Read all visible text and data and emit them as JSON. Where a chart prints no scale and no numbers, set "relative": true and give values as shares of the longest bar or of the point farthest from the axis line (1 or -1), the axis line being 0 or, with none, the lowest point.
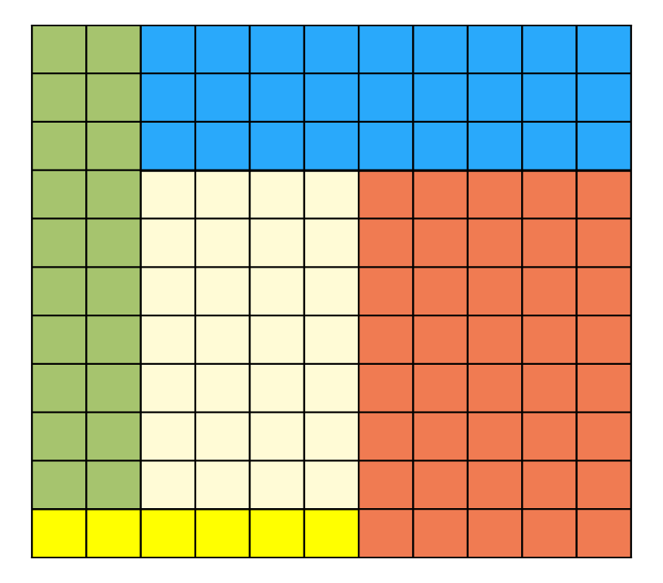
{
  "chart_data": {
    "type": "bar",
    "stacked": true,
    "relative": true,
    "grid": "y",
    "categories": [
      null,
      null,
      null,
      null,
      null,
      null,
      null,
      null,
      null,
      null,
      null
    ],
    "series": [
      {
        "color": "#ffff00",
        "values": [
          0.091,
          0.091,
          0.091,
          0.091,
          0.091,
          0.091,
          0,
          0,
          0,
          0,
          0
        ]
      },
      {
        "color": "#a6c46e",
        "values": [
          0.909,
          0.909,
          0,
          0,
          0,
          0,
          0,
          0,
          0,
          0,
          0
        ]
      },
      {
        "color": "#fffbd6",
        "values": [
          0,
          0,
          0.636,
          0.636,
          0.636,
          0.636,
          0,
          0,
          0,
          0,
          0
        ]
      },
      {
        "color": "#f07b52",
        "values": [
          0,
          0,
          0,
          0,
          0,
          0,
          0.727,
          0.727,
          0.727,
          0.727,
          0.727
        ]
      },
      {
        "color": "#29a9fb",
        "values": [
          0,
          0,
          0.273,
          0.273,
          0.273,
          0.273,
          0.273,
          0.273,
          0.273,
          0.273,
          0.273
        ]
      }
    ]
  }
}
